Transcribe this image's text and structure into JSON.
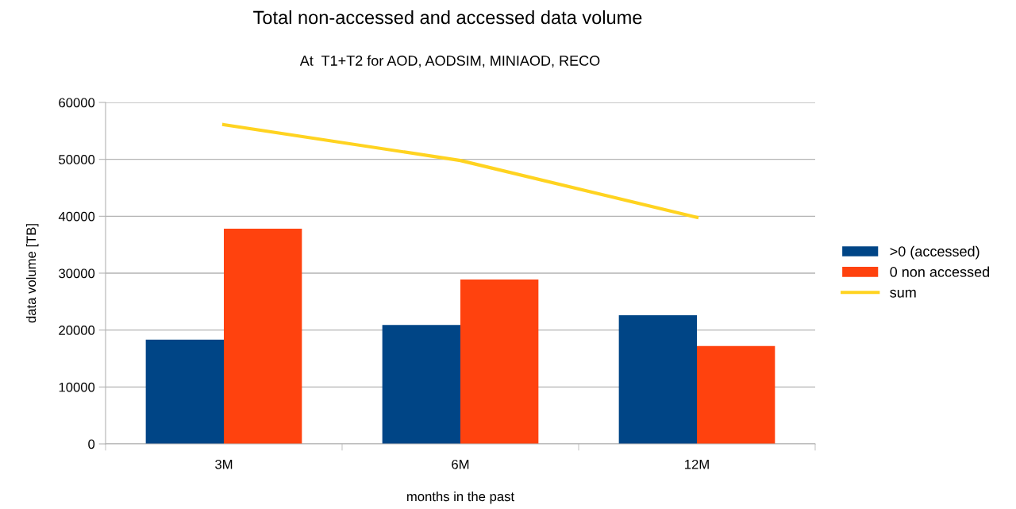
{
  "chart_data": {
    "type": "bar",
    "title": "Total non-accessed and accessed data volume",
    "subtitle": "At  T1+T2 for AOD, AODSIM, MINIAOD, RECO",
    "xlabel": "months in the past",
    "ylabel": "data volume [TB]",
    "categories": [
      "3M",
      "6M",
      "12M"
    ],
    "series": [
      {
        "name": ">0 (accessed)",
        "color": "#004586",
        "values": [
          18300,
          20900,
          22600
        ]
      },
      {
        "name": "0 non accessed",
        "color": "#ff420e",
        "values": [
          37800,
          28900,
          17200
        ]
      },
      {
        "name": "sum",
        "type": "line",
        "color": "#ffd320",
        "values": [
          56100,
          49800,
          39800
        ]
      }
    ],
    "ylim": [
      0,
      60000
    ],
    "yticks": [
      0,
      10000,
      20000,
      30000,
      40000,
      50000,
      60000
    ],
    "grid": "y",
    "legend": "right"
  }
}
